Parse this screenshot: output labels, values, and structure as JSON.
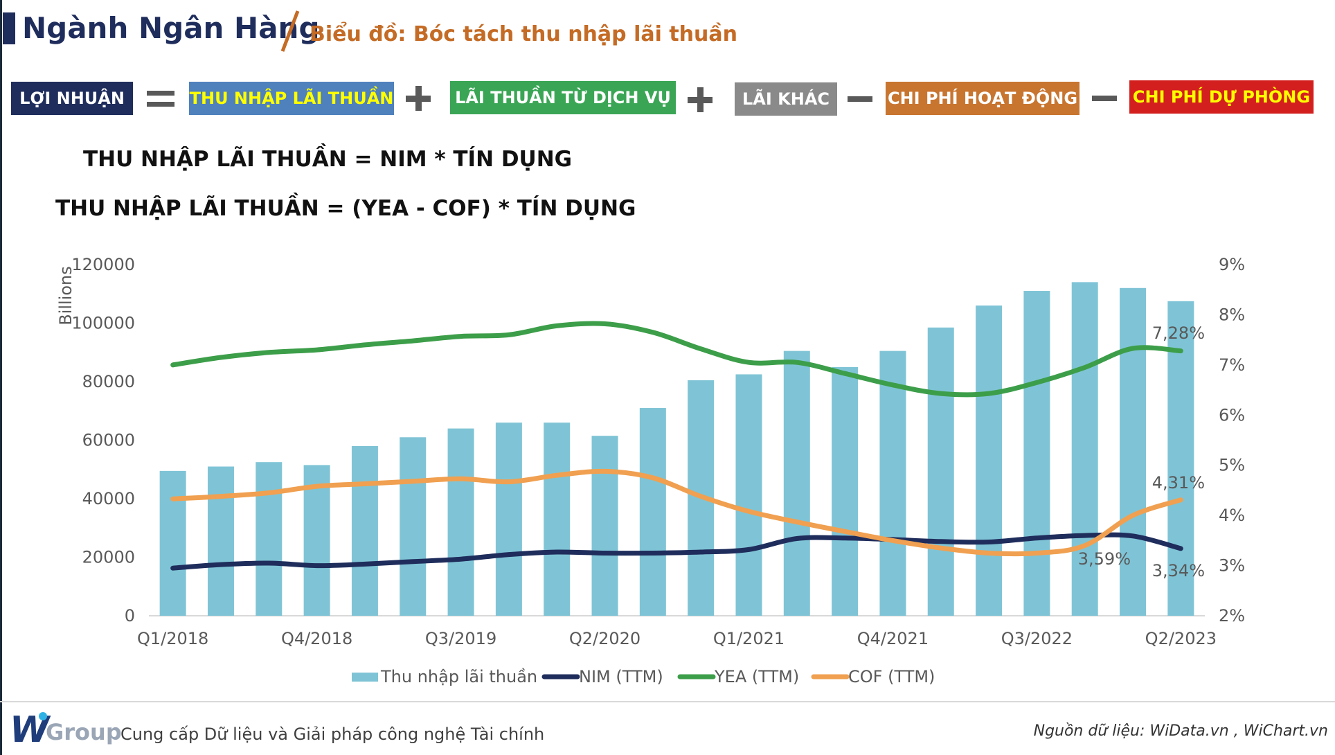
{
  "header": {
    "title": "Ngành Ngân Hàng",
    "subtitle": "Biểu đồ: Bóc tách thu nhập lãi thuần"
  },
  "equation": {
    "items": [
      {
        "label": "LỢI NHUẬN",
        "color": "#1f2d5c",
        "text_color": "#ffffff"
      },
      {
        "label": "THU NHẬP LÃI THUẦN",
        "color": "#4f81bd",
        "text_color": "#ffff00"
      },
      {
        "label": "LÃI THUẦN TỪ DỊCH VỤ",
        "color": "#3aa655",
        "text_color": "#ffffff"
      },
      {
        "label": "LÃI KHÁC",
        "color": "#8a8a8a",
        "text_color": "#ffffff"
      },
      {
        "label": "CHI PHÍ HOẠT ĐỘNG",
        "color": "#c87530",
        "text_color": "#ffffff"
      },
      {
        "label": "CHI PHÍ DỰ PHÒNG",
        "color": "#d41f1f",
        "text_color": "#ffff00"
      }
    ],
    "operators": [
      "equals-icon",
      "plus-icon",
      "plus-icon",
      "minus-icon",
      "minus-icon"
    ]
  },
  "formulas": {
    "line1": "THU NHẬP LÃI THUẦN = NIM * TÍN DỤNG",
    "line2": "THU NHẬP LÃI THUẦN = (YEA - COF) * TÍN DỤNG"
  },
  "chart_data": {
    "type": "bar",
    "ylabel": "Billions",
    "ylim": [
      0,
      120000
    ],
    "y_ticks": [
      "120000",
      "100000",
      "80000",
      "60000",
      "40000",
      "20000",
      "0"
    ],
    "y2lim": [
      0.02,
      0.09
    ],
    "y2_ticks": [
      "9%",
      "8%",
      "7%",
      "6%",
      "5%",
      "4%",
      "3%",
      "2%"
    ],
    "categories": [
      "Q1/2018",
      "Q2/2018",
      "Q3/2018",
      "Q4/2018",
      "Q1/2019",
      "Q2/2019",
      "Q3/2019",
      "Q4/2019",
      "Q1/2020",
      "Q2/2020",
      "Q3/2020",
      "Q4/2020",
      "Q1/2021",
      "Q2/2021",
      "Q3/2021",
      "Q4/2021",
      "Q1/2022",
      "Q2/2022",
      "Q3/2022",
      "Q4/2022",
      "Q1/2023",
      "Q2/2023"
    ],
    "x_tick_labels": [
      "Q1/2018",
      "",
      "",
      "Q4/2018",
      "",
      "",
      "Q3/2019",
      "",
      "",
      "Q2/2020",
      "",
      "",
      "Q1/2021",
      "",
      "",
      "Q4/2021",
      "",
      "",
      "Q3/2022",
      "",
      "",
      "Q2/2023"
    ],
    "series": [
      {
        "name": "Thu nhập lãi thuần",
        "kind": "bar",
        "axis": "left",
        "color": "#7fc4d6",
        "values": [
          49500,
          51000,
          52500,
          51500,
          58000,
          61000,
          64000,
          66000,
          66000,
          61500,
          71000,
          80500,
          82500,
          90500,
          85000,
          90500,
          98500,
          106000,
          111000,
          114000,
          112000,
          107500
        ]
      },
      {
        "name": "NIM (TTM)",
        "kind": "line",
        "axis": "right",
        "color": "#1f2d5c",
        "values": [
          0.0295,
          0.0302,
          0.0305,
          0.03,
          0.0303,
          0.0308,
          0.0313,
          0.0322,
          0.0327,
          0.0325,
          0.0325,
          0.0327,
          0.0332,
          0.0354,
          0.0355,
          0.0352,
          0.0348,
          0.0347,
          0.0355,
          0.036,
          0.0359,
          0.0334
        ]
      },
      {
        "name": "YEA (TTM)",
        "kind": "line",
        "axis": "right",
        "color": "#3d9e4a",
        "values": [
          0.07,
          0.0715,
          0.0725,
          0.073,
          0.074,
          0.0748,
          0.0757,
          0.076,
          0.0778,
          0.0782,
          0.0765,
          0.0732,
          0.0705,
          0.0705,
          0.0683,
          0.066,
          0.0643,
          0.0643,
          0.0665,
          0.0695,
          0.0733,
          0.0728
        ]
      },
      {
        "name": "COF (TTM)",
        "kind": "line",
        "axis": "right",
        "color": "#f0a050",
        "values": [
          0.0433,
          0.0438,
          0.0445,
          0.0458,
          0.0463,
          0.0468,
          0.0473,
          0.0467,
          0.048,
          0.0488,
          0.0475,
          0.0438,
          0.0408,
          0.0387,
          0.0368,
          0.035,
          0.0335,
          0.0325,
          0.0325,
          0.034,
          0.04,
          0.0431
        ]
      }
    ],
    "annotations": [
      "7,28%",
      "4,31%",
      "3,59%",
      "3,34%"
    ],
    "grid": false,
    "legend": "bottom"
  },
  "footer": {
    "logo_w": "W",
    "logo_group": "Group",
    "tagline": "Cung cấp Dữ liệu và Giải pháp công nghệ Tài chính",
    "source": "Nguồn dữ liệu: WiData.vn , WiChart.vn"
  }
}
